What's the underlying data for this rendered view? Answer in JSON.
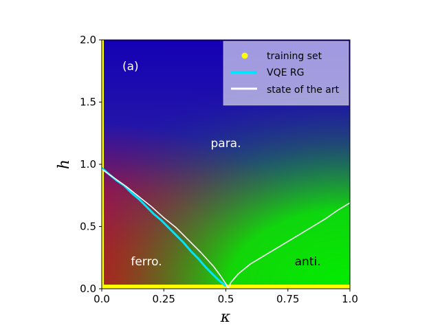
{
  "chart_data": {
    "type": "heatmap",
    "panel_label": "(a)",
    "xlabel": "κ",
    "ylabel": "h",
    "xlim": [
      0.0,
      1.0
    ],
    "ylim": [
      0.0,
      2.0
    ],
    "xticks": [
      0.0,
      0.25,
      0.5,
      0.75,
      1.0
    ],
    "xtick_labels": [
      "0.0",
      "0.25",
      "0.5",
      "0.75",
      "1.0"
    ],
    "yticks": [
      0.0,
      0.5,
      1.0,
      1.5,
      2.0
    ],
    "ytick_labels": [
      "0.0",
      "0.5",
      "1.0",
      "1.5",
      "2.0"
    ],
    "regions": [
      {
        "name": "ferro.",
        "kappa": 0.18,
        "h": 0.22,
        "color": "#ffffff"
      },
      {
        "name": "para.",
        "kappa": 0.5,
        "h": 1.17,
        "color": "#ffffff"
      },
      {
        "name": "anti.",
        "kappa": 0.83,
        "h": 0.22,
        "color": "#000000"
      }
    ],
    "colors": {
      "ferro": "#ff0000",
      "para": "#1a00cc",
      "anti": "#00ee00",
      "training_set": "#ffff00",
      "vqe_rg": "#00e5ff",
      "state_of_the_art": "#ffffff"
    },
    "legend": {
      "placement": "top-right",
      "entries": [
        {
          "label": "training set",
          "marker": "dot",
          "color": "#ffff00"
        },
        {
          "label": "VQE RG",
          "marker": "line",
          "color": "#00e5ff"
        },
        {
          "label": "state of the art",
          "marker": "line",
          "color": "#ffffff"
        }
      ]
    },
    "series": [
      {
        "name": "training set",
        "type": "scatter",
        "description_points": [
          {
            "x": 0.0,
            "y": 0.0
          },
          {
            "x": 0.0,
            "y": 0.5
          },
          {
            "x": 0.0,
            "y": 1.0
          },
          {
            "x": 0.0,
            "y": 1.5
          },
          {
            "x": 0.0,
            "y": 2.0
          },
          {
            "x": 0.25,
            "y": 0.0
          },
          {
            "x": 0.5,
            "y": 0.0
          },
          {
            "x": 0.75,
            "y": 0.0
          },
          {
            "x": 1.0,
            "y": 0.0
          }
        ]
      },
      {
        "name": "VQE RG",
        "type": "line",
        "x": [
          0.0,
          0.03,
          0.06,
          0.09,
          0.12,
          0.15,
          0.18,
          0.21,
          0.24,
          0.27,
          0.3,
          0.33,
          0.36,
          0.39,
          0.42,
          0.45,
          0.47,
          0.49,
          0.5
        ],
        "y": [
          0.97,
          0.92,
          0.87,
          0.83,
          0.77,
          0.72,
          0.66,
          0.6,
          0.55,
          0.49,
          0.43,
          0.37,
          0.3,
          0.24,
          0.17,
          0.11,
          0.07,
          0.04,
          0.02
        ]
      },
      {
        "name": "state of the art",
        "type": "line",
        "x": [
          0.0,
          0.05,
          0.1,
          0.15,
          0.2,
          0.25,
          0.3,
          0.35,
          0.4,
          0.45,
          0.48,
          0.5,
          0.51,
          0.52,
          0.55,
          0.6,
          0.65,
          0.7,
          0.75,
          0.8,
          0.85,
          0.9,
          0.95,
          1.0
        ],
        "y": [
          0.96,
          0.89,
          0.82,
          0.74,
          0.66,
          0.57,
          0.49,
          0.39,
          0.29,
          0.18,
          0.1,
          0.04,
          0.0,
          0.05,
          0.12,
          0.2,
          0.26,
          0.32,
          0.38,
          0.44,
          0.5,
          0.56,
          0.63,
          0.69
        ]
      }
    ]
  }
}
